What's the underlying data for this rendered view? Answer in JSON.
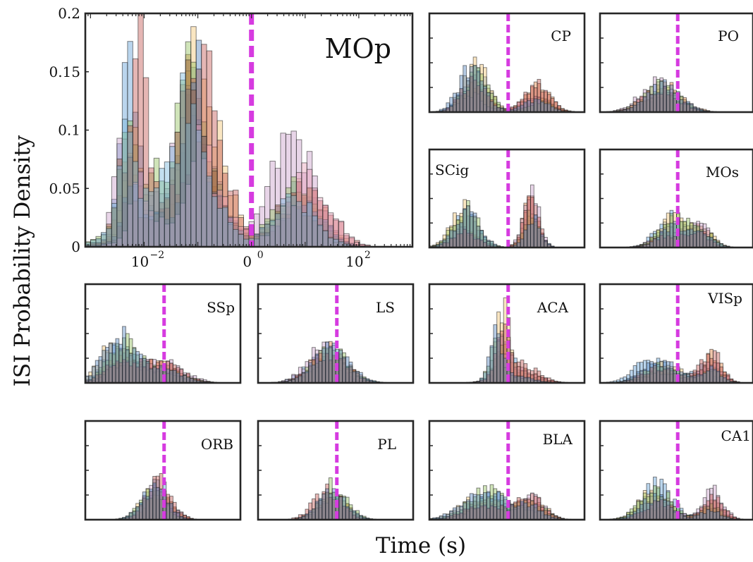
{
  "chart_data": {
    "type": "bar",
    "xlabel": "Time (s)",
    "ylabel": "ISI Probability Density",
    "x_scale": "log",
    "colors": {
      "threshold": "#d63be0",
      "series_palette": [
        "#5b9bd5",
        "#e07b39",
        "#f2c46d",
        "#c89ac8",
        "#8fbf59",
        "#c0504d",
        "#4f81bd",
        "#9b5b3a",
        "#e89ab6",
        "#6fb3d9"
      ]
    },
    "panels": [
      {
        "region": "MOp",
        "threshold_s": 1,
        "xlim": [
          0.0008,
          1000
        ],
        "ylim": [
          0,
          0.2
        ],
        "yticks": [
          0,
          0.05,
          0.1,
          0.15,
          0.2
        ],
        "ytick_labels": [
          "0",
          "0.05",
          "0.1",
          "0.15",
          "0.2"
        ],
        "xticks": [
          0.01,
          1,
          100
        ],
        "xtick_labels": [
          "10",
          "0",
          "10"
        ],
        "xtick_exponents": [
          "−2",
          "0",
          "2"
        ],
        "peaks": [
          {
            "center_log10": -2.2,
            "width": 0.15,
            "height": 0.16
          },
          {
            "center_log10": -1.05,
            "width": 0.15,
            "height": 0.167
          },
          {
            "center_log10": -0.75,
            "width": 0.35,
            "height": 0.1
          },
          {
            "center_log10": 0.95,
            "width": 0.4,
            "height": 0.1
          },
          {
            "center_log10": -1.5,
            "width": 0.6,
            "height": 0.07
          }
        ]
      },
      {
        "region": "CP",
        "threshold_s": 1,
        "peaks": [
          {
            "center_log10": -1.3,
            "width": 0.5,
            "height": 0.12
          },
          {
            "center_log10": 1.2,
            "width": 0.5,
            "height": 0.06
          }
        ]
      },
      {
        "region": "PO",
        "threshold_s": 1,
        "peaks": [
          {
            "center_log10": -0.6,
            "width": 0.7,
            "height": 0.06
          }
        ]
      },
      {
        "region": "SCig",
        "threshold_s": 1,
        "peaks": [
          {
            "center_log10": -1.6,
            "width": 0.5,
            "height": 0.08
          },
          {
            "center_log10": 1.0,
            "width": 0.3,
            "height": 0.13
          }
        ]
      },
      {
        "region": "MOs",
        "threshold_s": 1,
        "peaks": [
          {
            "center_log10": -0.2,
            "width": 0.6,
            "height": 0.07
          },
          {
            "center_log10": 1.0,
            "width": 0.4,
            "height": 0.05
          }
        ]
      },
      {
        "region": "SSp",
        "threshold_s": 1,
        "peaks": [
          {
            "center_log10": -1.8,
            "width": 0.6,
            "height": 0.09
          },
          {
            "center_log10": -0.2,
            "width": 0.8,
            "height": 0.05
          }
        ]
      },
      {
        "region": "LS",
        "threshold_s": 1,
        "peaks": [
          {
            "center_log10": -0.4,
            "width": 0.7,
            "height": 0.07
          }
        ]
      },
      {
        "region": "ACA",
        "threshold_s": 1,
        "peaks": [
          {
            "center_log10": -0.3,
            "width": 0.25,
            "height": 0.14
          },
          {
            "center_log10": 0.3,
            "width": 0.7,
            "height": 0.04
          }
        ]
      },
      {
        "region": "VISp",
        "threshold_s": 1,
        "peaks": [
          {
            "center_log10": -0.8,
            "width": 0.7,
            "height": 0.06
          },
          {
            "center_log10": 1.2,
            "width": 0.4,
            "height": 0.07
          }
        ]
      },
      {
        "region": "ORB",
        "threshold_s": 1,
        "peaks": [
          {
            "center_log10": -0.3,
            "width": 0.5,
            "height": 0.08
          }
        ]
      },
      {
        "region": "PL",
        "threshold_s": 1,
        "peaks": [
          {
            "center_log10": -0.3,
            "width": 0.55,
            "height": 0.07
          }
        ]
      },
      {
        "region": "BLA",
        "threshold_s": 1,
        "peaks": [
          {
            "center_log10": -0.9,
            "width": 0.8,
            "height": 0.06
          },
          {
            "center_log10": 0.9,
            "width": 0.5,
            "height": 0.05
          }
        ]
      },
      {
        "region": "CA1",
        "threshold_s": 1,
        "peaks": [
          {
            "center_log10": -0.8,
            "width": 0.6,
            "height": 0.08
          },
          {
            "center_log10": 1.4,
            "width": 0.4,
            "height": 0.06
          }
        ]
      }
    ]
  }
}
